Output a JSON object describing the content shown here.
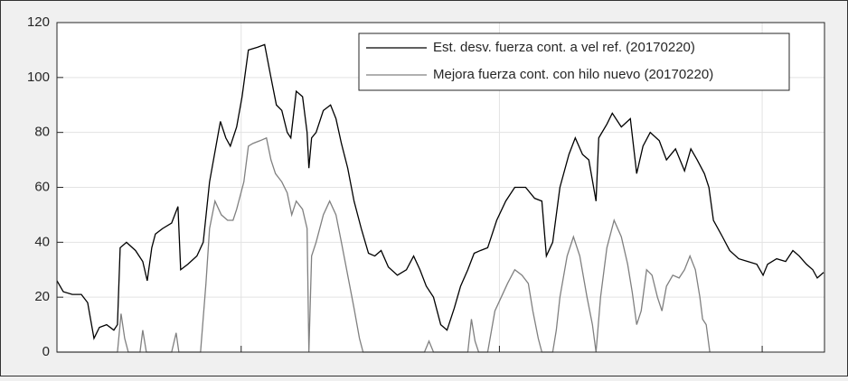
{
  "chart_data": {
    "type": "line",
    "xlim": [
      0,
      850
    ],
    "xticks": [
      204,
      490,
      781
    ],
    "ylim": [
      0,
      120
    ],
    "yticks": [
      0,
      20,
      40,
      60,
      80,
      100,
      120
    ],
    "grid": true,
    "legend": "northeast",
    "series": [
      {
        "name": "Est. desv. fuerza cont. a vel ref. (20170220)",
        "color": "#000000",
        "x": [
          0,
          7,
          17,
          27,
          34,
          41,
          47,
          55,
          63,
          67,
          70,
          77,
          87,
          95,
          100,
          105,
          109,
          117,
          127,
          134,
          137,
          145,
          155,
          162,
          169,
          175,
          181,
          187,
          192,
          199,
          205,
          212,
          222,
          230,
          237,
          243,
          249,
          255,
          259,
          265,
          272,
          277,
          279,
          282,
          287,
          295,
          303,
          309,
          315,
          322,
          329,
          337,
          345,
          352,
          359,
          367,
          377,
          387,
          395,
          402,
          409,
          417,
          425,
          432,
          440,
          447,
          455,
          462,
          469,
          477,
          487,
          497,
          507,
          519,
          529,
          537,
          542,
          549,
          557,
          567,
          574,
          582,
          589,
          597,
          600,
          609,
          615,
          625,
          635,
          642,
          649,
          657,
          667,
          675,
          685,
          695,
          702,
          709,
          717,
          722,
          727,
          737,
          745,
          755,
          765,
          775,
          782,
          787,
          797,
          807,
          815,
          822,
          830,
          837,
          842,
          849
        ],
        "values": [
          26,
          22,
          21,
          21,
          18,
          5,
          9,
          10,
          8,
          10,
          38,
          40,
          37,
          33,
          26,
          38,
          43,
          45,
          47,
          53,
          30,
          32,
          35,
          40,
          62,
          73,
          84,
          78,
          75,
          82,
          93,
          110,
          111,
          112,
          100,
          90,
          88,
          80,
          78,
          95,
          93,
          80,
          67,
          78,
          80,
          88,
          90,
          85,
          76,
          67,
          55,
          45,
          36,
          35,
          37,
          31,
          28,
          30,
          35,
          30,
          24,
          20,
          10,
          8,
          16,
          24,
          30,
          36,
          37,
          38,
          48,
          55,
          60,
          60,
          56,
          55,
          35,
          40,
          60,
          72,
          78,
          72,
          70,
          55,
          78,
          83,
          87,
          82,
          85,
          65,
          75,
          80,
          77,
          70,
          74,
          66,
          74,
          70,
          65,
          60,
          48,
          42,
          37,
          34,
          33,
          32,
          28,
          32,
          34,
          33,
          37,
          35,
          32,
          30,
          27,
          29
        ]
      },
      {
        "name": "Mejora fuerza cont. con hilo nuevo (20170220)",
        "color": "#808080",
        "x": [
          0,
          67,
          71,
          75,
          79,
          92,
          95,
          99,
          127,
          132,
          135,
          159,
          165,
          169,
          175,
          182,
          189,
          195,
          199,
          207,
          212,
          217,
          225,
          232,
          237,
          242,
          249,
          255,
          260,
          265,
          272,
          277,
          279,
          282,
          287,
          295,
          302,
          309,
          315,
          322,
          329,
          335,
          339,
          407,
          412,
          417,
          455,
          459,
          463,
          467,
          477,
          485,
          492,
          499,
          507,
          515,
          522,
          527,
          533,
          537,
          549,
          553,
          557,
          565,
          572,
          579,
          587,
          593,
          597,
          602,
          609,
          617,
          625,
          632,
          637,
          642,
          647,
          653,
          659,
          665,
          670,
          675,
          682,
          689,
          695,
          701,
          707,
          712,
          715,
          719,
          723
        ],
        "values": [
          0,
          0,
          14,
          5,
          0,
          0,
          8,
          0,
          0,
          7,
          0,
          0,
          25,
          45,
          55,
          50,
          48,
          48,
          52,
          62,
          75,
          76,
          77,
          78,
          70,
          65,
          62,
          58,
          50,
          55,
          52,
          45,
          0,
          35,
          40,
          50,
          55,
          50,
          40,
          28,
          16,
          5,
          0,
          0,
          4,
          0,
          0,
          12,
          4,
          0,
          0,
          15,
          20,
          25,
          30,
          28,
          25,
          15,
          5,
          0,
          0,
          8,
          20,
          35,
          42,
          35,
          20,
          10,
          0,
          20,
          38,
          48,
          42,
          32,
          22,
          10,
          15,
          30,
          28,
          20,
          15,
          24,
          28,
          27,
          30,
          35,
          30,
          20,
          12,
          10,
          0
        ]
      }
    ]
  }
}
